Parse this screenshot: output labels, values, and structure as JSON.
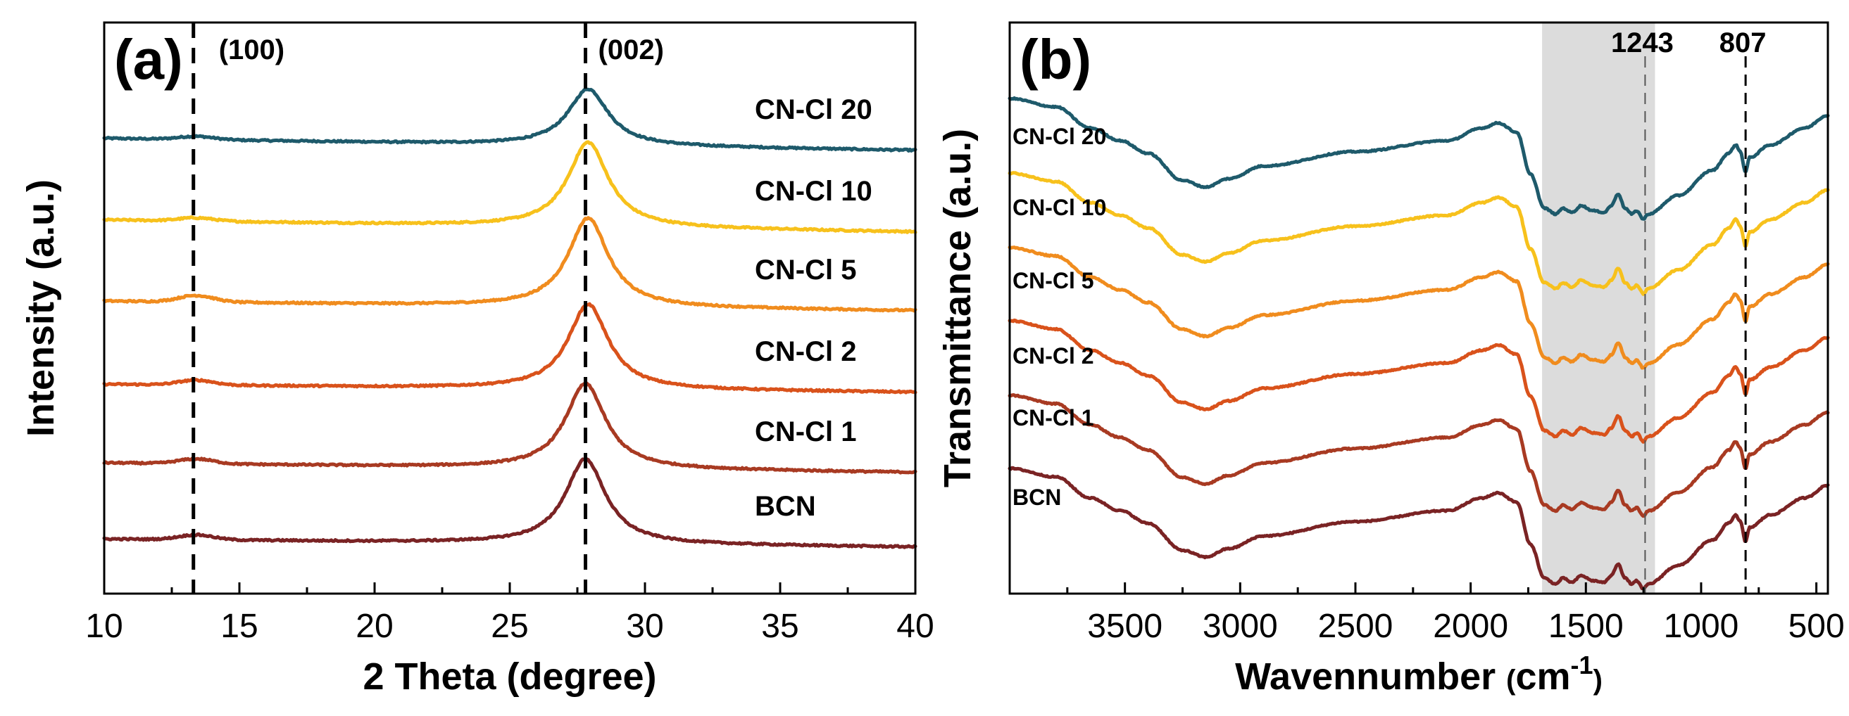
{
  "chart_data": [
    {
      "type": "line",
      "panel": "(a)",
      "xlabel": "2 Theta (degree)",
      "ylabel": "Intensity (a.u.)",
      "xlim": [
        10,
        40
      ],
      "xticks": [
        10,
        15,
        20,
        25,
        30,
        35,
        40
      ],
      "yticks": "none",
      "reference_lines": [
        {
          "x": 13.3,
          "label": "(100)"
        },
        {
          "x": 27.8,
          "label": "(002)"
        }
      ],
      "series": [
        {
          "name": "CN-Cl 20",
          "color": "#1e5a6b",
          "offset": 5,
          "baseline_left": 0.15,
          "baseline_right": 0.0,
          "peak100": 0.04,
          "peak002": {
            "x": 27.9,
            "height": 0.7,
            "width": 0.9
          }
        },
        {
          "name": "CN-Cl 10",
          "color": "#f7c11c",
          "offset": 4,
          "baseline_left": 0.15,
          "baseline_right": 0.0,
          "peak100": 0.04,
          "peak002": {
            "x": 27.9,
            "height": 1.05,
            "width": 0.9
          }
        },
        {
          "name": "CN-Cl 5",
          "color": "#f08c1e",
          "offset": 3,
          "baseline_left": 0.12,
          "baseline_right": 0.0,
          "peak100": 0.08,
          "peak002": {
            "x": 27.9,
            "height": 1.1,
            "width": 0.9
          }
        },
        {
          "name": "CN-Cl 2",
          "color": "#d9521b",
          "offset": 2,
          "baseline_left": 0.1,
          "baseline_right": 0.0,
          "peak100": 0.06,
          "peak002": {
            "x": 27.9,
            "height": 1.05,
            "width": 0.9
          }
        },
        {
          "name": "CN-Cl 1",
          "color": "#a83a22",
          "offset": 1,
          "baseline_left": 0.12,
          "baseline_right": 0.0,
          "peak100": 0.06,
          "peak002": {
            "x": 27.8,
            "height": 1.05,
            "width": 0.9
          }
        },
        {
          "name": "BCN",
          "color": "#7a2324",
          "offset": 0,
          "baseline_left": 0.1,
          "baseline_right": 0.0,
          "peak100": 0.06,
          "peak002": {
            "x": 27.8,
            "height": 1.05,
            "width": 0.9
          }
        }
      ]
    },
    {
      "type": "line",
      "panel": "(b)",
      "xlabel": "Wavennumber (cm-1)",
      "xlabel_main": "Wavennumber ",
      "xlabel_paren_open": "(",
      "xlabel_unit": "cm",
      "xlabel_sup": "-1",
      "xlabel_paren_close": ")",
      "ylabel": "Transmittance (a.u.)",
      "xlim": [
        4000,
        450
      ],
      "xticks": [
        3500,
        3000,
        2500,
        2000,
        1500,
        1000,
        500
      ],
      "yticks": "none",
      "shaded_region": [
        1690,
        1200
      ],
      "reference_lines": [
        {
          "x": 1243,
          "label": "1243"
        },
        {
          "x": 807,
          "label": "807"
        }
      ],
      "series": [
        {
          "name": "CN-Cl 20",
          "color": "#1e5a6b",
          "offset": 5
        },
        {
          "name": "CN-Cl 10",
          "color": "#f7c11c",
          "offset": 4
        },
        {
          "name": "CN-Cl 5",
          "color": "#f08c1e",
          "offset": 3
        },
        {
          "name": "CN-Cl 2",
          "color": "#d9521b",
          "offset": 2
        },
        {
          "name": "CN-Cl 1",
          "color": "#a83a22",
          "offset": 1
        },
        {
          "name": "BCN",
          "color": "#7a2324",
          "offset": 0
        }
      ],
      "profile": [
        [
          4000,
          0.55
        ],
        [
          3800,
          0.45
        ],
        [
          3650,
          0.2
        ],
        [
          3520,
          0.05
        ],
        [
          3400,
          -0.1
        ],
        [
          3250,
          -0.42
        ],
        [
          3150,
          -0.5
        ],
        [
          3050,
          -0.4
        ],
        [
          2900,
          -0.25
        ],
        [
          2500,
          -0.08
        ],
        [
          2100,
          0.05
        ],
        [
          1950,
          0.2
        ],
        [
          1880,
          0.26
        ],
        [
          1800,
          0.15
        ],
        [
          1740,
          -0.35
        ],
        [
          1680,
          -0.75
        ],
        [
          1630,
          -0.82
        ],
        [
          1600,
          -0.75
        ],
        [
          1560,
          -0.8
        ],
        [
          1520,
          -0.72
        ],
        [
          1470,
          -0.78
        ],
        [
          1420,
          -0.8
        ],
        [
          1390,
          -0.72
        ],
        [
          1360,
          -0.58
        ],
        [
          1330,
          -0.75
        ],
        [
          1300,
          -0.82
        ],
        [
          1280,
          -0.78
        ],
        [
          1250,
          -0.88
        ],
        [
          1230,
          -0.82
        ],
        [
          1100,
          -0.6
        ],
        [
          950,
          -0.3
        ],
        [
          880,
          -0.1
        ],
        [
          850,
          0.0
        ],
        [
          830,
          -0.08
        ],
        [
          807,
          -0.32
        ],
        [
          790,
          -0.15
        ],
        [
          700,
          0.0
        ],
        [
          550,
          0.2
        ],
        [
          450,
          0.35
        ]
      ]
    }
  ]
}
